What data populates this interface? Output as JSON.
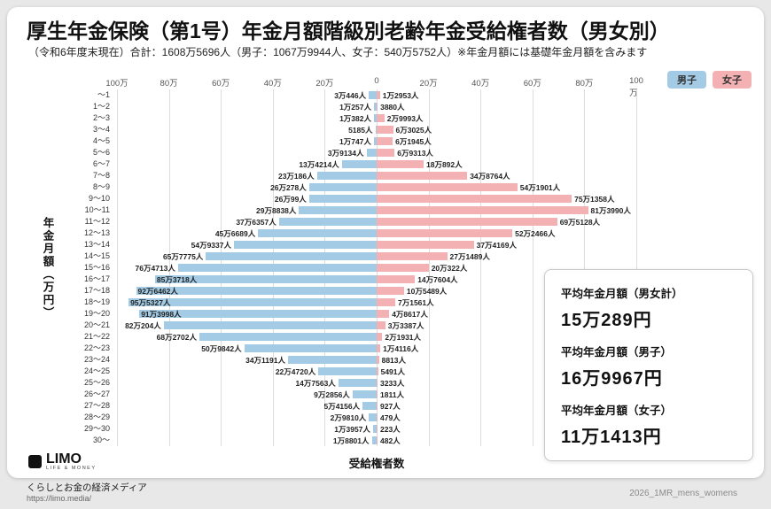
{
  "header": {
    "title": "厚生年金保険（第1号）年金月額階級別老齢年金受給権者数（男女別）",
    "subtitle": "（令和6年度末現在）合計：1608万5696人（男子：1067万9944人、女子：540万5752人）※年金月額には基礎年金月額を含みます"
  },
  "legend": {
    "male_label": "男子",
    "female_label": "女子"
  },
  "colors": {
    "male_bar": "#a3cbe5",
    "female_bar": "#f4b1b3"
  },
  "axis": {
    "y_axis_title": "年金月額（万円）",
    "x_axis_title": "受給権者数"
  },
  "chart_data": {
    "type": "bar",
    "variant": "population-pyramid",
    "title": "厚生年金保険（第1号）年金月額階級別老齢年金受給権者数（男女別）",
    "category_axis_label": "年金月額（万円）",
    "value_axis_label": "受給権者数",
    "value_axis_ticks": [
      "100万",
      "80万",
      "60万",
      "40万",
      "20万",
      "0",
      "20万",
      "40万",
      "60万",
      "80万",
      "100万"
    ],
    "value_axis_max": 1000000,
    "categories": [
      "～1",
      "1～2",
      "2～3",
      "3～4",
      "4～5",
      "5～6",
      "6～7",
      "7～8",
      "8～9",
      "9～10",
      "10～11",
      "11～12",
      "12～13",
      "13～14",
      "14～15",
      "15～16",
      "16～17",
      "17～18",
      "18～19",
      "19～20",
      "20～21",
      "21～22",
      "22～23",
      "23～24",
      "24～25",
      "25～26",
      "26～27",
      "27～28",
      "28～29",
      "29～30",
      "30～"
    ],
    "series": [
      {
        "name": "男子",
        "side": "left",
        "color": "#a3cbe5",
        "values": [
          30446,
          10257,
          10382,
          5185,
          10747,
          39134,
          134214,
          230186,
          260278,
          260099,
          298838,
          376357,
          456689,
          549337,
          657775,
          764713,
          853718,
          926462,
          955327,
          913998,
          820204,
          682702,
          509842,
          341191,
          224720,
          147563,
          92856,
          54156,
          29810,
          13957,
          18801
        ],
        "labels": [
          "3万446人",
          "1万257人",
          "1万382人",
          "5185人",
          "1万747人",
          "3万9134人",
          "13万4214人",
          "23万186人",
          "26万278人",
          "26万99人",
          "29万8838人",
          "37万6357人",
          "45万6689人",
          "54万9337人",
          "65万7775人",
          "76万4713人",
          "85万3718人",
          "92万6462人",
          "95万5327人",
          "91万3998人",
          "82万204人",
          "68万2702人",
          "50万9842人",
          "34万1191人",
          "22万4720人",
          "14万7563人",
          "9万2856人",
          "5万4156人",
          "2万9810人",
          "1万3957人",
          "1万8801人"
        ]
      },
      {
        "name": "女子",
        "side": "right",
        "color": "#f4b1b3",
        "values": [
          12953,
          3880,
          29993,
          63025,
          61945,
          69313,
          180892,
          348764,
          541901,
          751358,
          813990,
          695128,
          522466,
          374169,
          271489,
          200322,
          147604,
          105489,
          71561,
          48617,
          33387,
          21931,
          14116,
          8813,
          5491,
          3233,
          1811,
          927,
          479,
          223,
          482
        ],
        "labels": [
          "1万2953人",
          "3880人",
          "2万9993人",
          "6万3025人",
          "6万1945人",
          "6万9313人",
          "18万892人",
          "34万8764人",
          "54万1901人",
          "75万1358人",
          "81万3990人",
          "69万5128人",
          "52万2466人",
          "37万4169人",
          "27万1489人",
          "20万322人",
          "14万7604人",
          "10万5489人",
          "7万1561人",
          "4万8617人",
          "3万3387人",
          "2万1931人",
          "1万4116人",
          "8813人",
          "5491人",
          "3233人",
          "1811人",
          "927人",
          "479人",
          "223人",
          "482人"
        ]
      }
    ]
  },
  "stats_panel": {
    "items": [
      {
        "label": "平均年金月額（男女計）",
        "value": "15万289円"
      },
      {
        "label": "平均年金月額（男子）",
        "value": "16万9967円"
      },
      {
        "label": "平均年金月額（女子）",
        "value": "11万1413円"
      }
    ]
  },
  "footer": {
    "logo_text": "LIMO",
    "logo_tagline": "LIFE & MONEY",
    "media_name": "くらしとお金の経済メディア",
    "url": "https://limo.media/",
    "file_label": "2026_1MR_mens_womens"
  }
}
